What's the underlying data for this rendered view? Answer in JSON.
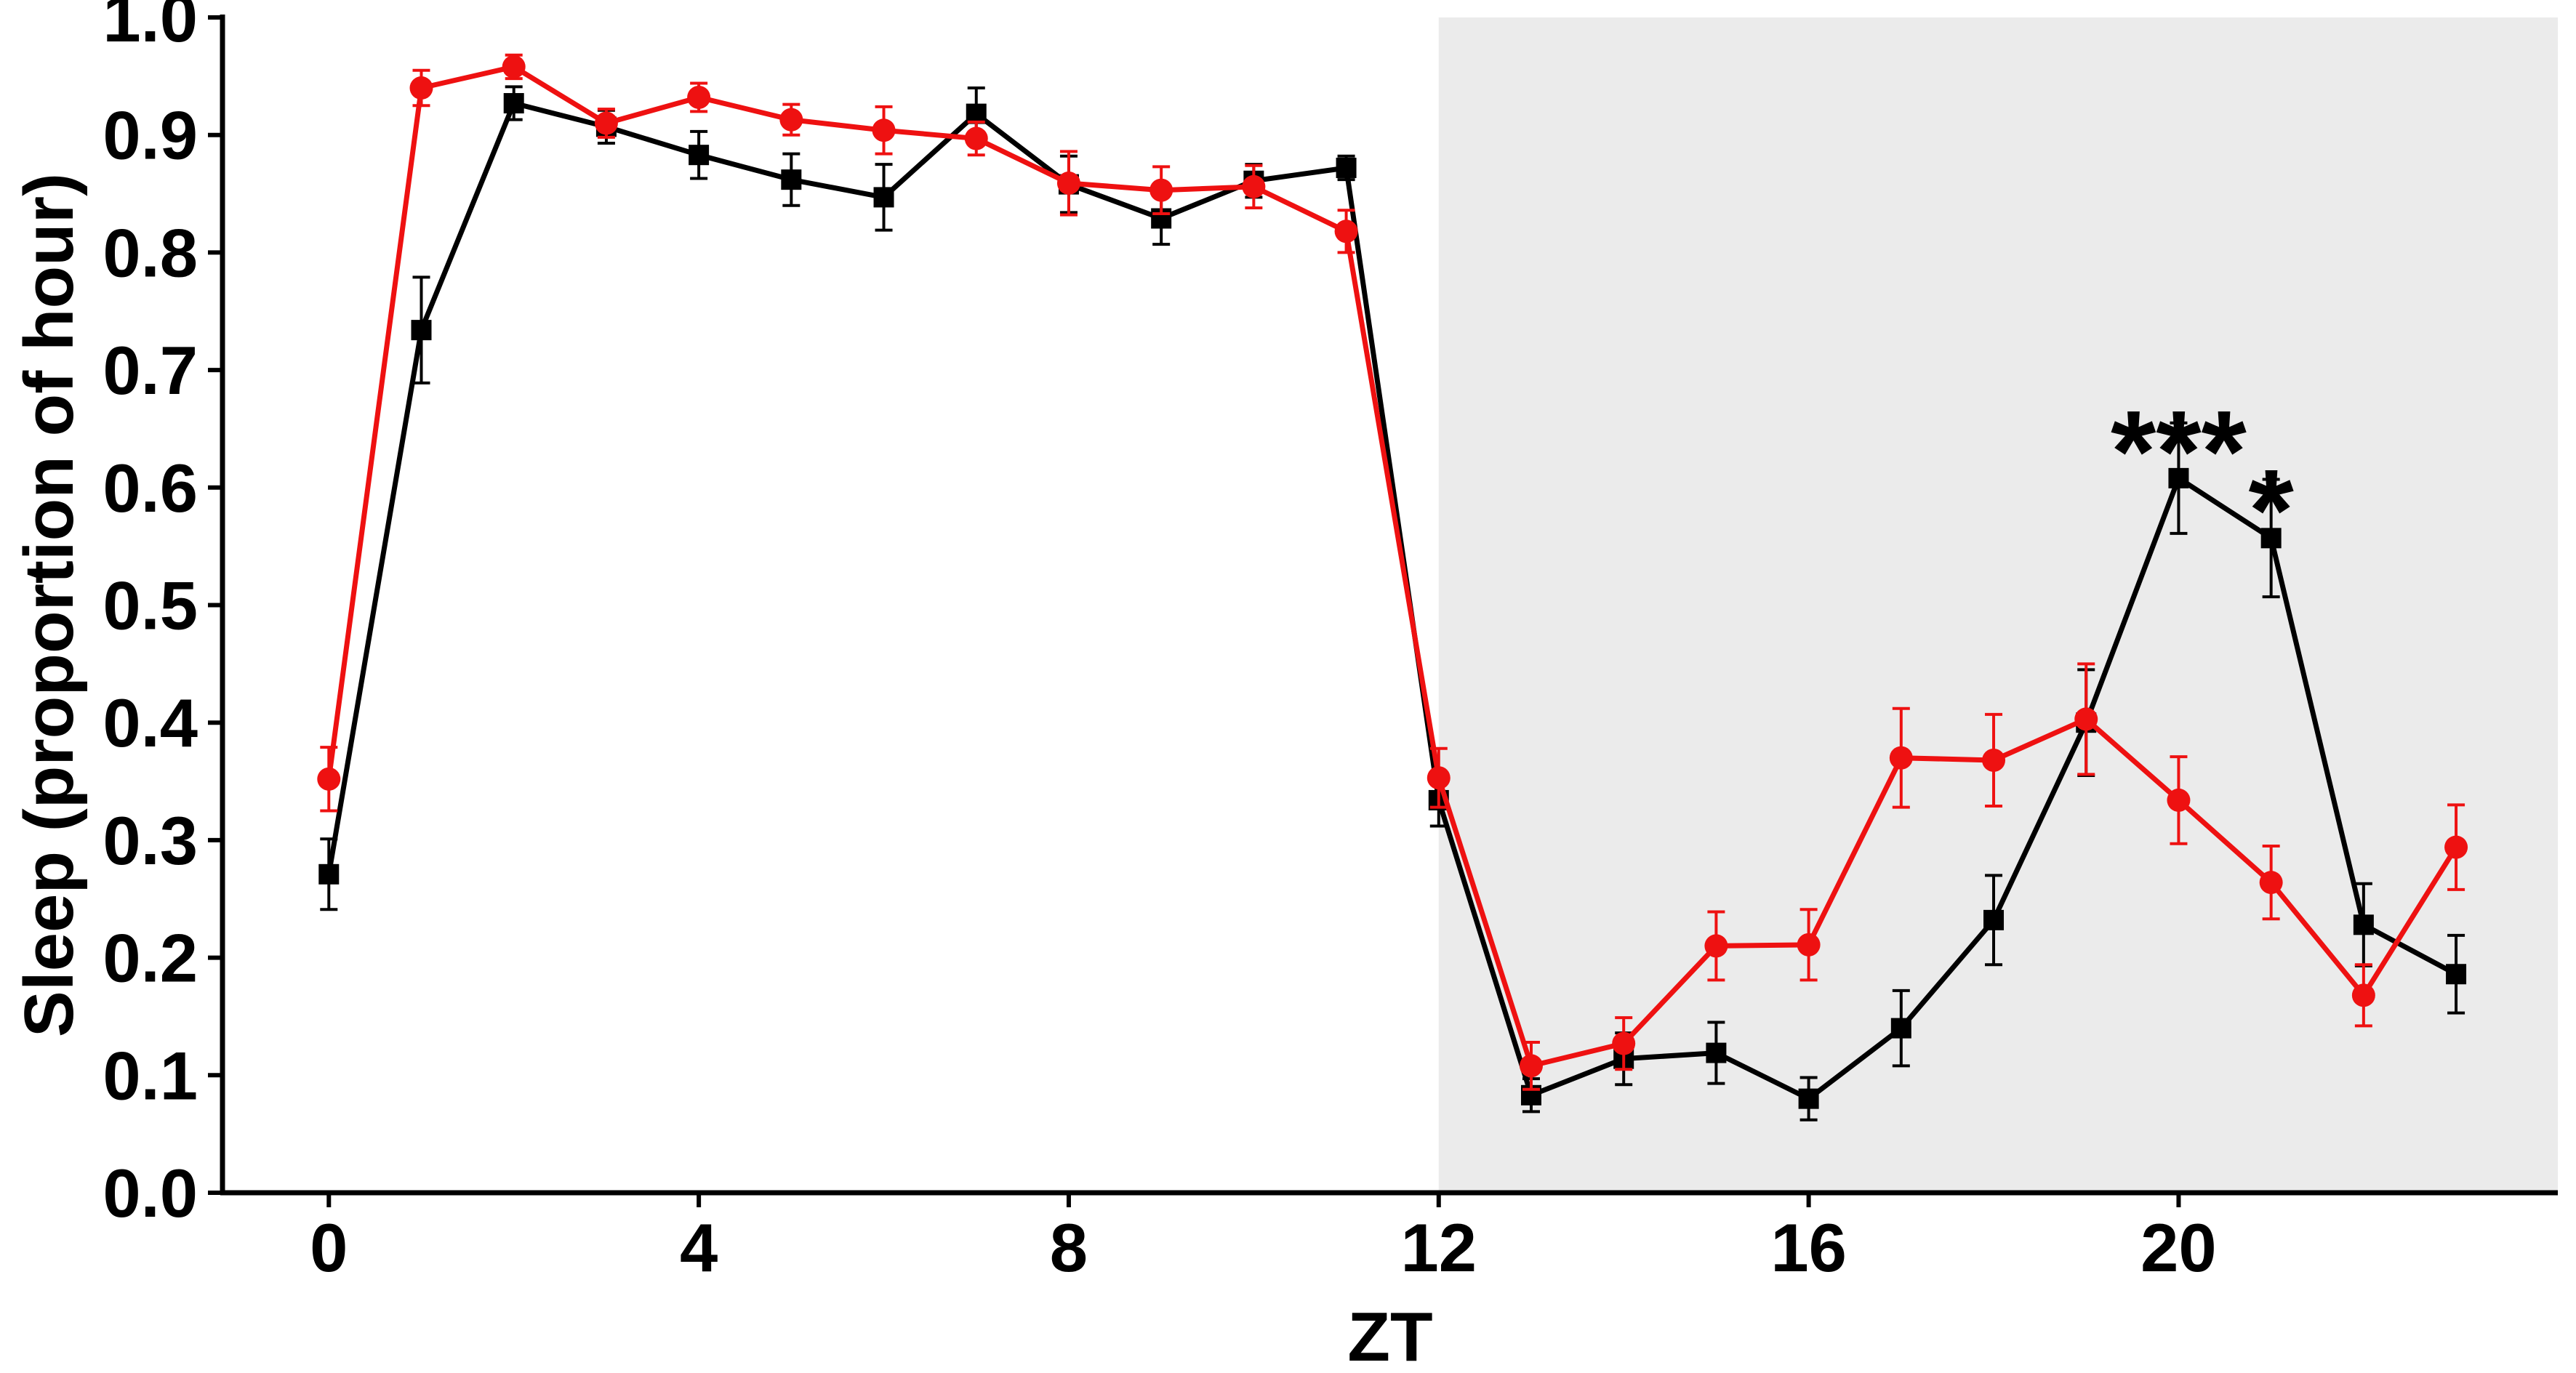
{
  "chart_data": {
    "type": "line",
    "xlabel": "ZT",
    "ylabel": "Sleep (proportion of hour)",
    "xlim": [
      -1.15,
      24.1
    ],
    "ylim": [
      0,
      1.0
    ],
    "x_ticks": [
      0,
      4,
      8,
      12,
      16,
      20
    ],
    "x_tick_labels": [
      "0",
      "4",
      "8",
      "12",
      "16",
      "20"
    ],
    "y_ticks": [
      0,
      0.1,
      0.2,
      0.3,
      0.4,
      0.5,
      0.6,
      0.7,
      0.8,
      0.9,
      1.0
    ],
    "y_tick_labels": [
      "0.0",
      "0.1",
      "0.2",
      "0.3",
      "0.4",
      "0.5",
      "0.6",
      "0.7",
      "0.8",
      "0.9",
      "1.0"
    ],
    "grid": false,
    "legend": "none",
    "shaded_region": {
      "x_from": 12,
      "x_to": 24.1,
      "color": "#ebebeb"
    },
    "x": [
      0,
      1,
      2,
      3,
      4,
      5,
      6,
      7,
      8,
      9,
      10,
      11,
      12,
      13,
      14,
      15,
      16,
      17,
      18,
      19,
      20,
      21,
      22,
      23
    ],
    "series": [
      {
        "color": "#000000",
        "marker": "square",
        "values": [
          0.271,
          0.734,
          0.927,
          0.907,
          0.883,
          0.862,
          0.847,
          0.918,
          0.858,
          0.829,
          0.861,
          0.872,
          0.334,
          0.083,
          0.114,
          0.119,
          0.08,
          0.14,
          0.232,
          0.4,
          0.608,
          0.557,
          0.228,
          0.186
        ],
        "errors": [
          0.03,
          0.045,
          0.014,
          0.014,
          0.02,
          0.022,
          0.028,
          0.022,
          0.024,
          0.022,
          0.014,
          0.01,
          0.022,
          0.014,
          0.022,
          0.026,
          0.018,
          0.032,
          0.038,
          0.045,
          0.047,
          0.05,
          0.035,
          0.033
        ]
      },
      {
        "color": "#ee1111",
        "marker": "circle",
        "values": [
          0.352,
          0.94,
          0.958,
          0.91,
          0.932,
          0.913,
          0.904,
          0.897,
          0.859,
          0.853,
          0.856,
          0.818,
          0.353,
          0.108,
          0.127,
          0.21,
          0.211,
          0.37,
          0.368,
          0.403,
          0.334,
          0.264,
          0.168,
          0.294
        ],
        "errors": [
          0.027,
          0.015,
          0.01,
          0.012,
          0.012,
          0.013,
          0.02,
          0.014,
          0.027,
          0.02,
          0.018,
          0.018,
          0.025,
          0.02,
          0.022,
          0.029,
          0.03,
          0.042,
          0.039,
          0.047,
          0.037,
          0.031,
          0.026,
          0.036
        ]
      }
    ],
    "annotations": [
      {
        "text": "***",
        "x": 20,
        "y": 0.635
      },
      {
        "text": "*",
        "x": 21,
        "y": 0.585
      }
    ]
  }
}
